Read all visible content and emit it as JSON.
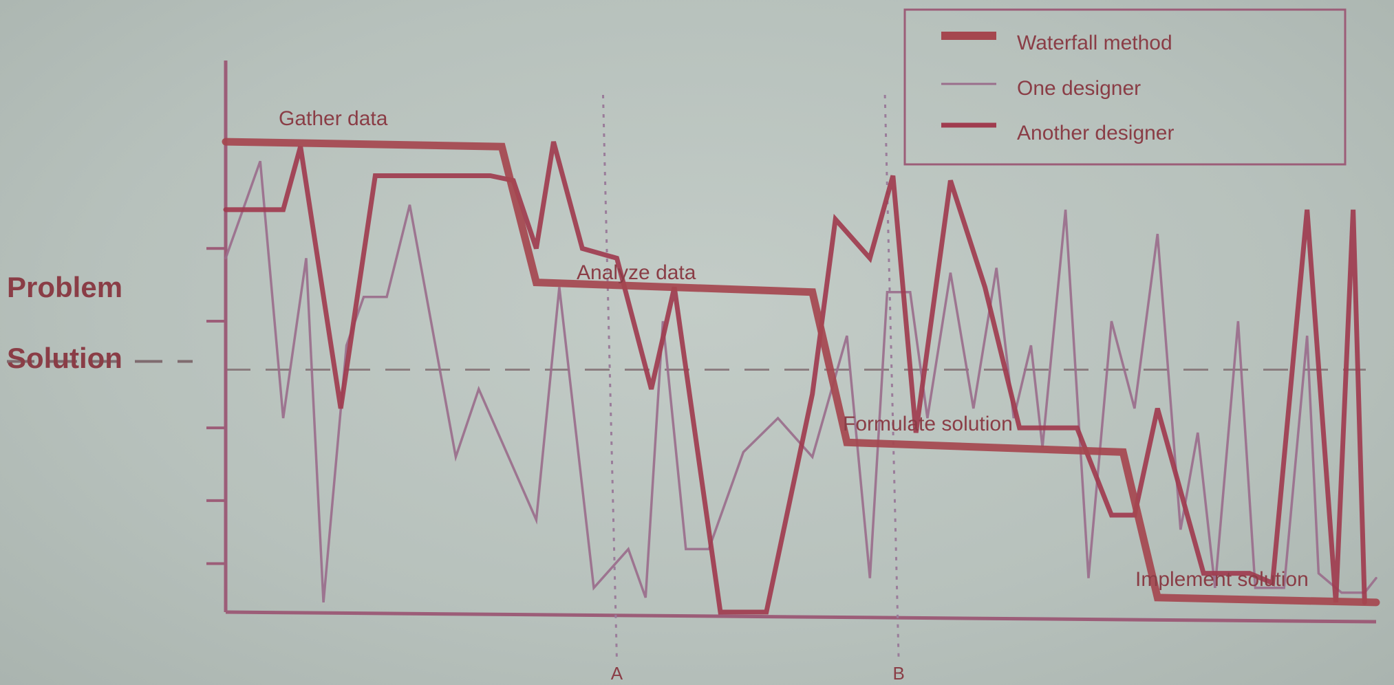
{
  "colors": {
    "waterfall": "#a5474f",
    "one_designer": "#9a6e8c",
    "another_designer": "#a03c4f",
    "axis": "#9c5d78",
    "divider": "#7f6b6f",
    "text": "#8a3d46",
    "marker": "#9a7c9a"
  },
  "chart_data": {
    "type": "line",
    "title": "",
    "xlabel": "",
    "ylabel": "",
    "xlim": [
      0,
      100
    ],
    "ylim": [
      0,
      100
    ],
    "y_ticks": [
      10,
      23,
      38,
      60,
      75
    ],
    "left_labels": {
      "upper": "Problem",
      "lower": "Solution"
    },
    "divider_y": 50,
    "markers": [
      {
        "label": "A",
        "x": 34
      },
      {
        "label": "B",
        "x": 58.5
      }
    ],
    "stage_labels": [
      "Gather data",
      "Analyze data",
      "Formulate solution",
      "Implement solution"
    ],
    "legend_position": "top-right",
    "series": [
      {
        "name": "Waterfall method",
        "x": [
          0,
          24,
          27,
          51,
          54,
          78,
          81,
          100
        ],
        "y": [
          97,
          96,
          68,
          66,
          35,
          33,
          3,
          2
        ]
      },
      {
        "name": "One designer",
        "x": [
          0,
          3,
          5,
          7,
          8.5,
          10.5,
          12,
          14,
          16,
          20,
          22,
          27,
          29,
          32,
          35,
          36.5,
          38,
          40,
          42,
          45,
          48,
          51,
          54,
          56,
          57.5,
          59.5,
          61,
          63,
          65,
          67,
          68.5,
          70,
          71,
          73,
          75,
          77,
          79,
          81,
          83,
          84.5,
          86,
          88,
          89.5,
          92,
          94,
          95,
          97,
          99,
          100
        ],
        "y": [
          73,
          93,
          40,
          73,
          2,
          55,
          65,
          65,
          84,
          32,
          46,
          19,
          67,
          5,
          13,
          3,
          60,
          13,
          13,
          33,
          40,
          32,
          57,
          7,
          66,
          66,
          40,
          70,
          42,
          71,
          40,
          55,
          34,
          83,
          7,
          60,
          42,
          78,
          17,
          37,
          5,
          60,
          5,
          5,
          57,
          8,
          4,
          4,
          7
        ]
      },
      {
        "name": "Another designer",
        "x": [
          0,
          5,
          6.5,
          10,
          13,
          23,
          25,
          27,
          28.5,
          31,
          34,
          37,
          39,
          43,
          47,
          51,
          53,
          56,
          58,
          60,
          63,
          66,
          69,
          71,
          74,
          77,
          79,
          81,
          85,
          89,
          91,
          94,
          96.5,
          98,
          99
        ],
        "y": [
          83,
          83,
          96,
          42,
          90,
          90,
          89,
          75,
          97,
          75,
          73,
          46,
          67,
          0,
          0,
          45,
          81,
          73,
          90,
          37,
          89,
          67,
          38,
          38,
          38,
          20,
          20,
          42,
          8,
          8,
          6,
          83,
          2,
          83,
          2
        ]
      }
    ]
  }
}
